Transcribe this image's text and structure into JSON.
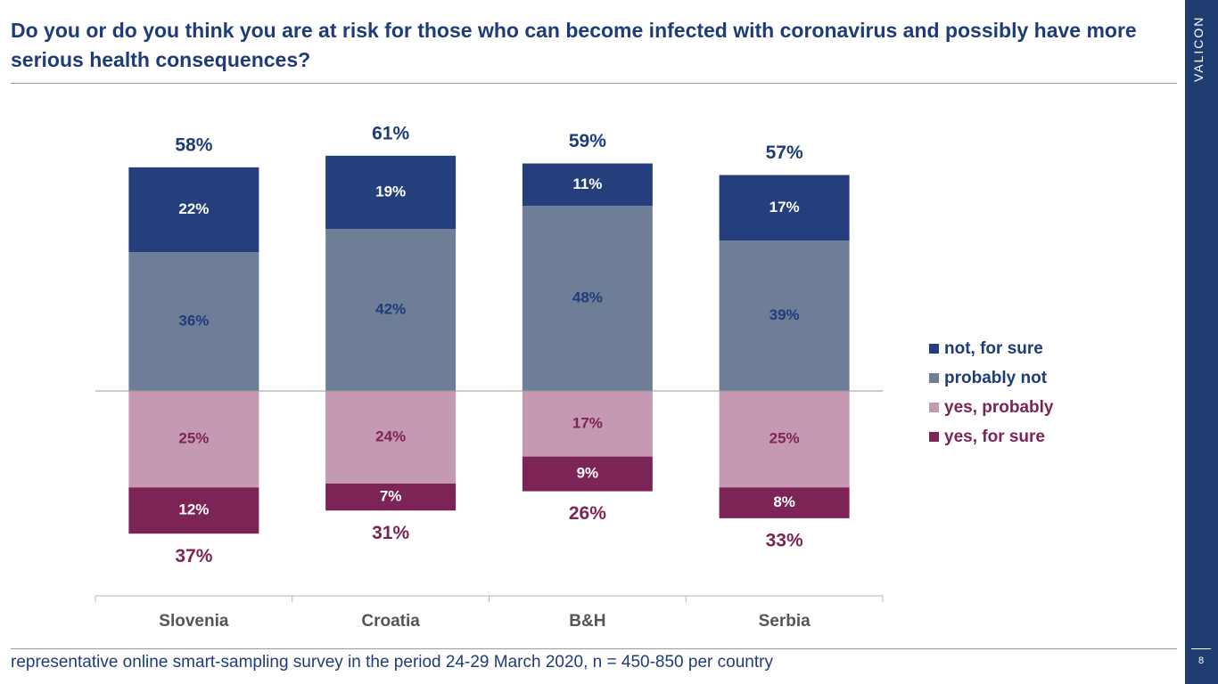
{
  "title": "Do you or do you think you are at risk for those who can become infected with coronavirus and possibly have more serious health consequences?",
  "brand": "VALICON",
  "page_number": "8",
  "footer": "representative online smart-sampling survey in the period 24-29 March 2020, n = 450-850 per country",
  "colors": {
    "not_for_sure": "#243f7b",
    "probably_not": "#6d7e96",
    "yes_probably": "#c599b2",
    "yes_for_sure": "#7c2456",
    "navy_text": "#1f3c7a",
    "plum_text": "#7c2456"
  },
  "legend": [
    {
      "label": "not, for sure",
      "color": "#243f7b",
      "text_color": "#1f3c7a"
    },
    {
      "label": "probably not",
      "color": "#6d7e96",
      "text_color": "#1f3c7a"
    },
    {
      "label": "yes, probably",
      "color": "#c599b2",
      "text_color": "#7c2456"
    },
    {
      "label": "yes, for sure",
      "color": "#7c2456",
      "text_color": "#7c2456"
    }
  ],
  "chart_data": {
    "type": "bar",
    "stacked": "diverging",
    "categories": [
      "Slovenia",
      "Croatia",
      "B&H",
      "Serbia"
    ],
    "series": [
      {
        "name": "not, for sure",
        "values": [
          22,
          19,
          11,
          17
        ],
        "labels": [
          "22%",
          "19%",
          "11%",
          "17%"
        ]
      },
      {
        "name": "probably not",
        "values": [
          36,
          42,
          48,
          39
        ],
        "labels": [
          "36%",
          "42%",
          "48%",
          "39%"
        ]
      },
      {
        "name": "yes, probably",
        "values": [
          25,
          24,
          17,
          25
        ],
        "labels": [
          "25%",
          "24%",
          "17%",
          "25%"
        ]
      },
      {
        "name": "yes, for sure",
        "values": [
          12,
          7,
          9,
          8
        ],
        "labels": [
          "12%",
          "7%",
          "9%",
          "8%"
        ]
      }
    ],
    "totals_no": [
      58,
      61,
      59,
      57
    ],
    "totals_no_labels": [
      "58%",
      "61%",
      "59%",
      "57%"
    ],
    "totals_yes": [
      37,
      31,
      26,
      33
    ],
    "totals_yes_labels": [
      "37%",
      "31%",
      "26%",
      "33%"
    ],
    "legend_position": "right",
    "grid": false
  }
}
